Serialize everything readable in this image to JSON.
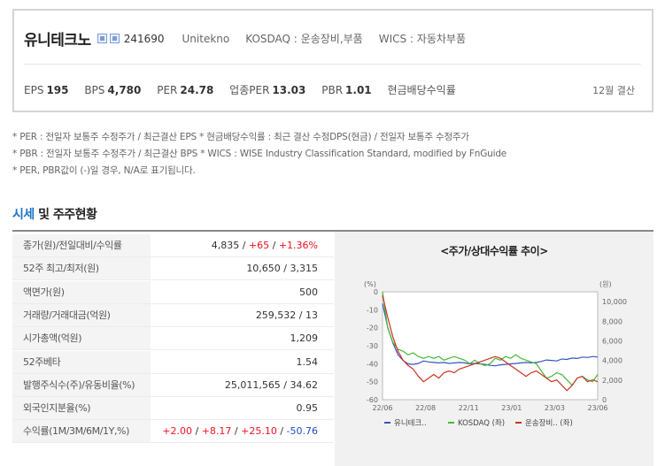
{
  "company": {
    "name": "유니테크노",
    "code": "241690",
    "english_name": "Unitekno",
    "market": "KOSDAQ : 운송장비,부품",
    "wics": "WICS : 자동차부품",
    "icon": "stock-type-icon"
  },
  "metrics": [
    {
      "label": "EPS",
      "value": "195"
    },
    {
      "label": "BPS",
      "value": "4,780"
    },
    {
      "label": "PER",
      "value": "24.78"
    },
    {
      "label": "업종PER",
      "value": "13.03"
    },
    {
      "label": "PBR",
      "value": "1.01"
    },
    {
      "label": "현금배당수익률",
      "value": ""
    }
  ],
  "settlement": "12월 결산",
  "notes": [
    "* PER : 전일자 보통주 수정주가 / 최근결산 EPS * 현금배당수익률 : 최근 결산 수정DPS(현금) / 전일자 보통주 수정주가",
    "* PBR : 전일자 보통주 수정주가 / 최근결산 BPS * WICS : WISE Industry Classification Standard, modified by FnGuide",
    "* PER, PBR값이 (-)일 경우, N/A로 표기됩니다."
  ],
  "section": {
    "title_highlight": "시세",
    "title_rest": " 및 주주현황"
  },
  "table": {
    "rows": [
      {
        "key": "종가(원)/전일대비/수익률",
        "parts": [
          {
            "t": "4,835 / ",
            "c": ""
          },
          {
            "t": "+65",
            "c": "red"
          },
          {
            "t": " / ",
            "c": ""
          },
          {
            "t": "+1.36%",
            "c": "red"
          }
        ]
      },
      {
        "key": "52주 최고/최저(원)",
        "parts": [
          {
            "t": "10,650 / 3,315",
            "c": ""
          }
        ]
      },
      {
        "key": "액면가(원)",
        "parts": [
          {
            "t": "500",
            "c": ""
          }
        ]
      },
      {
        "key": "거래량/거래대금(억원)",
        "parts": [
          {
            "t": "259,532 / 13",
            "c": ""
          }
        ]
      },
      {
        "key": "시가총액(억원)",
        "parts": [
          {
            "t": "1,209",
            "c": ""
          }
        ]
      },
      {
        "key": "52주베타",
        "parts": [
          {
            "t": "1.54",
            "c": ""
          }
        ]
      },
      {
        "key": "발행주식수(주)/유동비율(%)",
        "parts": [
          {
            "t": "25,011,565 / 34.62",
            "c": ""
          }
        ]
      },
      {
        "key": "외국인지분율(%)",
        "parts": [
          {
            "t": "0.95",
            "c": ""
          }
        ]
      },
      {
        "key": "수익률(1M/3M/6M/1Y,%)",
        "parts": [
          {
            "t": "+2.00",
            "c": "red"
          },
          {
            "t": " / ",
            "c": ""
          },
          {
            "t": "+8.17",
            "c": "red"
          },
          {
            "t": " / ",
            "c": ""
          },
          {
            "t": "+25.10",
            "c": "red"
          },
          {
            "t": " / ",
            "c": ""
          },
          {
            "t": "-50.76",
            "c": "blue"
          }
        ]
      }
    ]
  },
  "chart_data": {
    "type": "line",
    "title": "<주가/상대수익률 추이>",
    "left_unit": "(%)",
    "right_unit": "(원)",
    "y_left_ticks": [
      "0",
      "-10",
      "-20",
      "-30",
      "-40",
      "-50",
      "-60"
    ],
    "y_right_ticks": [
      "10,000",
      "8,000",
      "6,000",
      "4,000",
      "2,000",
      "0"
    ],
    "x_ticks": [
      "22/06",
      "22/08",
      "22/11",
      "23/01",
      "23/03",
      "23/06"
    ],
    "ylim_left": [
      -60,
      0
    ],
    "ylim_right": [
      0,
      11000
    ],
    "series": [
      {
        "name": "유니테크..",
        "axis": "right",
        "color": "#3355bb",
        "values": [
          9800,
          7400,
          5800,
          4600,
          4000,
          3650,
          3600,
          3700,
          3950,
          3850,
          3800,
          3750,
          3800,
          3700,
          3750,
          3800,
          3750,
          3650,
          3700,
          3650,
          3600,
          3500,
          3450,
          3550,
          3600,
          3650,
          3700,
          3750,
          3800,
          3750,
          3800,
          3900,
          4050,
          4000,
          3950,
          4150,
          4100,
          4250,
          4200,
          4350,
          4300,
          4400,
          4350
        ]
      },
      {
        "name": "KOSDAQ (좌)",
        "axis": "left",
        "color": "#44bb33",
        "values": [
          0,
          -20,
          -28,
          -32,
          -33,
          -35,
          -34,
          -36,
          -37,
          -36,
          -37,
          -36,
          -38,
          -37,
          -36,
          -37,
          -38,
          -40,
          -38,
          -40,
          -41,
          -40,
          -37,
          -38,
          -36,
          -37,
          -35,
          -37,
          -38,
          -39,
          -40,
          -44,
          -48,
          -47,
          -45,
          -46,
          -49,
          -52,
          -48,
          -47,
          -49,
          -50,
          -46
        ]
      },
      {
        "name": "운송장비.. (좌)",
        "axis": "left",
        "color": "#cc3322",
        "values": [
          -2,
          -14,
          -25,
          -33,
          -38,
          -41,
          -43,
          -47,
          -50,
          -48,
          -46,
          -48,
          -45,
          -44,
          -45,
          -43,
          -42,
          -41,
          -40,
          -39,
          -38,
          -37,
          -36,
          -37,
          -39,
          -41,
          -43,
          -45,
          -47,
          -45,
          -44,
          -46,
          -48,
          -50,
          -49,
          -52,
          -55,
          -52,
          -48,
          -47,
          -50,
          -49,
          -50
        ]
      }
    ],
    "legend_position": "bottom"
  }
}
